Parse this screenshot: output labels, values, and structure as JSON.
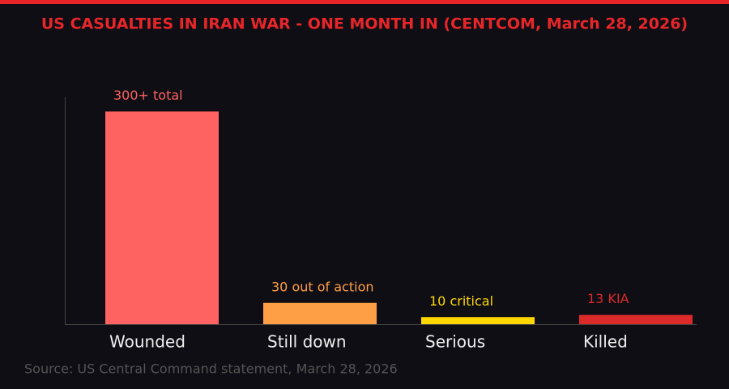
{
  "chart_data": {
    "type": "bar",
    "title": "US CASUALTIES IN IRAN WAR - ONE MONTH IN (CENTCOM, March 28, 2026)",
    "categories": [
      "Wounded",
      "Still down",
      "Serious",
      "Killed"
    ],
    "values": [
      300,
      30,
      10,
      13
    ],
    "value_labels": [
      "300+ total",
      "30 out of action",
      "10 critical",
      "13 KIA"
    ],
    "colors": [
      "#ff6361",
      "#ff9f45",
      "#ffd700",
      "#dc2a2a"
    ],
    "ylim": [
      0,
      320
    ],
    "source": "Source: US Central Command statement, March 28, 2026"
  }
}
